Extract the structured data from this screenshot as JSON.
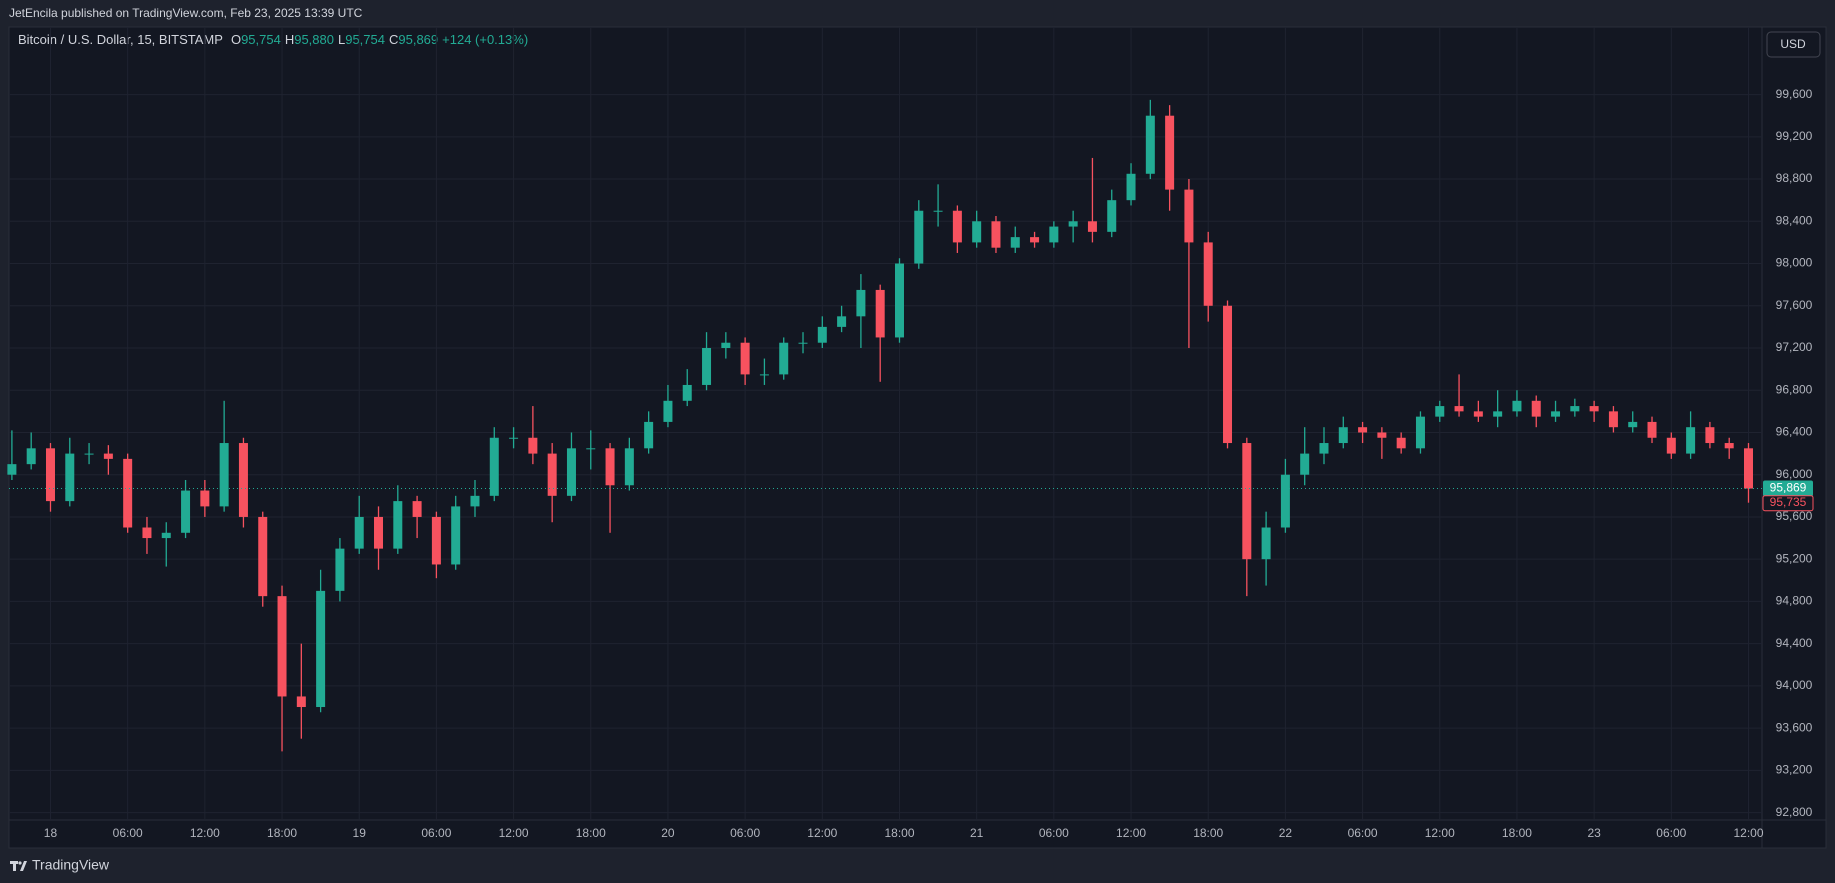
{
  "header": {
    "publisher": "JetEncila published on TradingView.com, Feb 23, 2025 13:39 UTC"
  },
  "footer": {
    "brand": "TradingView"
  },
  "chart_data": {
    "type": "candlestick",
    "symbol": "Bitcoin / U.S. Dollar, 15, BITSTAMP",
    "ohlc_legend": [
      {
        "label": "O",
        "value": "95,754"
      },
      {
        "label": "H",
        "value": "95,880"
      },
      {
        "label": "L",
        "value": "95,754"
      },
      {
        "label": "C",
        "value": "95,869"
      }
    ],
    "change": "+124 (+0.13%)",
    "currency_button": "USD",
    "up_color": "#22ab94",
    "down_color": "#f7525f",
    "grid": true,
    "open": [
      96000,
      96100,
      96250,
      95750,
      96200,
      96200,
      96150,
      95500,
      95400,
      95450,
      95850,
      95700,
      96300,
      95600,
      94850,
      93900,
      93800,
      94900,
      95300,
      95600,
      95300,
      95750,
      95600,
      95150,
      95700,
      95800,
      96350,
      96350,
      96200,
      95800,
      96250,
      96250,
      95900,
      96250,
      96500,
      96700,
      96850,
      97200,
      97250,
      96950,
      96950,
      97250,
      97250,
      97400,
      97500,
      97750,
      97300,
      98000,
      98500,
      98500,
      98200,
      98400,
      98150,
      98250,
      98200,
      98350,
      98400,
      98300,
      98600,
      98850,
      99400,
      98700,
      98200,
      97600,
      96300,
      95200,
      95500,
      96000,
      96200,
      96300,
      96450,
      96400,
      96350,
      96250,
      96550,
      96650,
      96600,
      96550,
      96600,
      96700,
      96550,
      96600,
      96650,
      96600,
      96450,
      96500,
      96350,
      96200,
      96450,
      96300,
      96250
    ],
    "high": [
      96420,
      96400,
      96300,
      96350,
      96300,
      96280,
      96200,
      95600,
      95550,
      95950,
      95950,
      96700,
      96350,
      95650,
      94950,
      94400,
      95100,
      95400,
      95800,
      95700,
      95900,
      95800,
      95650,
      95800,
      95950,
      96450,
      96450,
      96650,
      96300,
      96400,
      96420,
      96300,
      96350,
      96600,
      96850,
      97000,
      97350,
      97350,
      97300,
      97100,
      97300,
      97350,
      97500,
      97600,
      97900,
      97800,
      98050,
      98600,
      98750,
      98550,
      98500,
      98450,
      98350,
      98300,
      98400,
      98500,
      99000,
      98700,
      98950,
      99550,
      99500,
      98800,
      98300,
      97650,
      96350,
      95650,
      96150,
      96450,
      96450,
      96550,
      96500,
      96450,
      96400,
      96600,
      96700,
      96950,
      96700,
      96800,
      96800,
      96750,
      96700,
      96720,
      96700,
      96650,
      96600,
      96550,
      96400,
      96600,
      96500,
      96350,
      96300
    ],
    "low": [
      95950,
      96050,
      95650,
      95700,
      96100,
      96000,
      95450,
      95250,
      95130,
      95400,
      95600,
      95650,
      95500,
      94750,
      93380,
      93500,
      93750,
      94800,
      95250,
      95100,
      95250,
      95400,
      95020,
      95100,
      95600,
      95750,
      96250,
      96100,
      95550,
      95750,
      96050,
      95450,
      95850,
      96200,
      96450,
      96650,
      96800,
      97100,
      96850,
      96850,
      96900,
      97150,
      97200,
      97350,
      97200,
      96880,
      97250,
      97950,
      98350,
      98100,
      98150,
      98100,
      98100,
      98150,
      98150,
      98200,
      98200,
      98250,
      98550,
      98800,
      98500,
      97200,
      97450,
      96250,
      94850,
      94950,
      95450,
      95900,
      96100,
      96250,
      96300,
      96150,
      96200,
      96200,
      96500,
      96550,
      96500,
      96450,
      96550,
      96450,
      96500,
      96550,
      96500,
      96400,
      96400,
      96300,
      96150,
      96150,
      96250,
      96150,
      95735
    ],
    "close": [
      96100,
      96250,
      95750,
      96200,
      96200,
      96150,
      95500,
      95400,
      95450,
      95850,
      95700,
      96300,
      95600,
      94850,
      93900,
      93800,
      94900,
      95300,
      95600,
      95300,
      95750,
      95600,
      95150,
      95700,
      95800,
      96350,
      96350,
      96200,
      95800,
      96250,
      96250,
      95900,
      96250,
      96500,
      96700,
      96850,
      97200,
      97250,
      96950,
      96950,
      97250,
      97250,
      97400,
      97500,
      97750,
      97300,
      98000,
      98500,
      98500,
      98200,
      98400,
      98150,
      98250,
      98200,
      98350,
      98400,
      98300,
      98600,
      98850,
      99400,
      98700,
      98200,
      97600,
      96300,
      95200,
      95500,
      96000,
      96200,
      96300,
      96450,
      96400,
      96350,
      96250,
      96550,
      96650,
      96600,
      96550,
      96600,
      96700,
      96550,
      96600,
      96650,
      96600,
      96450,
      96500,
      96350,
      96200,
      96450,
      96300,
      96250,
      95869
    ],
    "xlim": [
      -0.15,
      90.7
    ],
    "xticks": [
      {
        "value": 2,
        "label": "18"
      },
      {
        "value": 6,
        "label": "06:00"
      },
      {
        "value": 10,
        "label": "12:00"
      },
      {
        "value": 14,
        "label": "18:00"
      },
      {
        "value": 18,
        "label": "19"
      },
      {
        "value": 22,
        "label": "06:00"
      },
      {
        "value": 26,
        "label": "12:00"
      },
      {
        "value": 30,
        "label": "18:00"
      },
      {
        "value": 34,
        "label": "20"
      },
      {
        "value": 38,
        "label": "06:00"
      },
      {
        "value": 42,
        "label": "12:00"
      },
      {
        "value": 46,
        "label": "18:00"
      },
      {
        "value": 50,
        "label": "21"
      },
      {
        "value": 54,
        "label": "06:00"
      },
      {
        "value": 58,
        "label": "12:00"
      },
      {
        "value": 62,
        "label": "18:00"
      },
      {
        "value": 66,
        "label": "22"
      },
      {
        "value": 70,
        "label": "06:00"
      },
      {
        "value": 74,
        "label": "12:00"
      },
      {
        "value": 78,
        "label": "18:00"
      },
      {
        "value": 82,
        "label": "23"
      },
      {
        "value": 86,
        "label": "06:00"
      },
      {
        "value": 90,
        "label": "12:00"
      }
    ],
    "ylim": [
      92730,
      100240
    ],
    "yticks": [
      {
        "value": 92800,
        "label": "92,800"
      },
      {
        "value": 93200,
        "label": "93,200"
      },
      {
        "value": 93600,
        "label": "93,600"
      },
      {
        "value": 94000,
        "label": "94,000"
      },
      {
        "value": 94400,
        "label": "94,400"
      },
      {
        "value": 94800,
        "label": "94,800"
      },
      {
        "value": 95200,
        "label": "95,200"
      },
      {
        "value": 95600,
        "label": "95,600"
      },
      {
        "value": 96000,
        "label": "96,000"
      },
      {
        "value": 96400,
        "label": "96,400"
      },
      {
        "value": 96800,
        "label": "96,800"
      },
      {
        "value": 97200,
        "label": "97,200"
      },
      {
        "value": 97600,
        "label": "97,600"
      },
      {
        "value": 98000,
        "label": "98,000"
      },
      {
        "value": 98400,
        "label": "98,400"
      },
      {
        "value": 98800,
        "label": "98,800"
      },
      {
        "value": 99200,
        "label": "99,200"
      },
      {
        "value": 99600,
        "label": "99,600"
      }
    ],
    "last_price": {
      "value": 95869,
      "label": "95,869"
    },
    "second_price": {
      "value": 95735,
      "label": "95,735"
    }
  }
}
